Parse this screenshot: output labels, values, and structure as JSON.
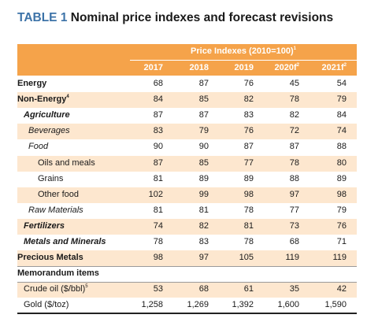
{
  "title": {
    "label": "TABLE 1",
    "text": "Nominal price indexes and forecast revisions"
  },
  "header": {
    "group_label": "Price Indexes (2010=100)",
    "group_note": "1",
    "years": [
      {
        "label": "2017",
        "sup": ""
      },
      {
        "label": "2018",
        "sup": ""
      },
      {
        "label": "2019",
        "sup": ""
      },
      {
        "label": "2020f",
        "sup": "2"
      },
      {
        "label": "2021f",
        "sup": "2"
      }
    ]
  },
  "rows": [
    {
      "label": "Energy",
      "note": "",
      "style": "b",
      "indent": 0,
      "shade": false,
      "values": [
        "68",
        "87",
        "76",
        "45",
        "54"
      ]
    },
    {
      "label": "Non-Energy",
      "note": "4",
      "style": "b",
      "indent": 0,
      "shade": true,
      "values": [
        "84",
        "85",
        "82",
        "78",
        "79"
      ]
    },
    {
      "label": "Agriculture",
      "note": "",
      "style": "bi",
      "indent": 1,
      "shade": false,
      "values": [
        "87",
        "87",
        "83",
        "82",
        "84"
      ]
    },
    {
      "label": "Beverages",
      "note": "",
      "style": "i",
      "indent": 2,
      "shade": true,
      "values": [
        "83",
        "79",
        "76",
        "72",
        "74"
      ]
    },
    {
      "label": "Food",
      "note": "",
      "style": "i",
      "indent": 2,
      "shade": false,
      "values": [
        "90",
        "90",
        "87",
        "87",
        "88"
      ]
    },
    {
      "label": "Oils and meals",
      "note": "",
      "style": "n",
      "indent": 3,
      "shade": true,
      "values": [
        "87",
        "85",
        "77",
        "78",
        "80"
      ]
    },
    {
      "label": "Grains",
      "note": "",
      "style": "n",
      "indent": 3,
      "shade": false,
      "values": [
        "81",
        "89",
        "89",
        "88",
        "89"
      ]
    },
    {
      "label": "Other food",
      "note": "",
      "style": "n",
      "indent": 3,
      "shade": true,
      "values": [
        "102",
        "99",
        "98",
        "97",
        "98"
      ]
    },
    {
      "label": "Raw Materials",
      "note": "",
      "style": "i",
      "indent": 2,
      "shade": false,
      "values": [
        "81",
        "81",
        "78",
        "77",
        "79"
      ]
    },
    {
      "label": "Fertilizers",
      "note": "",
      "style": "bi",
      "indent": 1,
      "shade": true,
      "values": [
        "74",
        "82",
        "81",
        "73",
        "76"
      ]
    },
    {
      "label": "Metals and Minerals",
      "note": "",
      "style": "bi",
      "indent": 1,
      "shade": false,
      "values": [
        "78",
        "83",
        "78",
        "68",
        "71"
      ]
    },
    {
      "label": "Precious Metals",
      "note": "",
      "style": "b",
      "indent": 0,
      "shade": true,
      "values": [
        "98",
        "97",
        "105",
        "119",
        "119"
      ]
    },
    {
      "label": "Memorandum items",
      "note": "",
      "style": "b",
      "indent": 0,
      "shade": false,
      "values": [
        "",
        "",
        "",
        "",
        ""
      ]
    },
    {
      "label": "Crude oil ($/bbl)",
      "note": "5",
      "style": "n",
      "indent": 1,
      "shade": true,
      "values": [
        "53",
        "68",
        "61",
        "35",
        "42"
      ]
    },
    {
      "label": "Gold ($/toz)",
      "note": "",
      "style": "n",
      "indent": 1,
      "shade": false,
      "values": [
        "1,258",
        "1,269",
        "1,392",
        "1,600",
        "1,590"
      ]
    }
  ],
  "colors": {
    "header": "#f5a34a",
    "shade": "#fde7cf",
    "title_accent": "#3d73a8"
  }
}
